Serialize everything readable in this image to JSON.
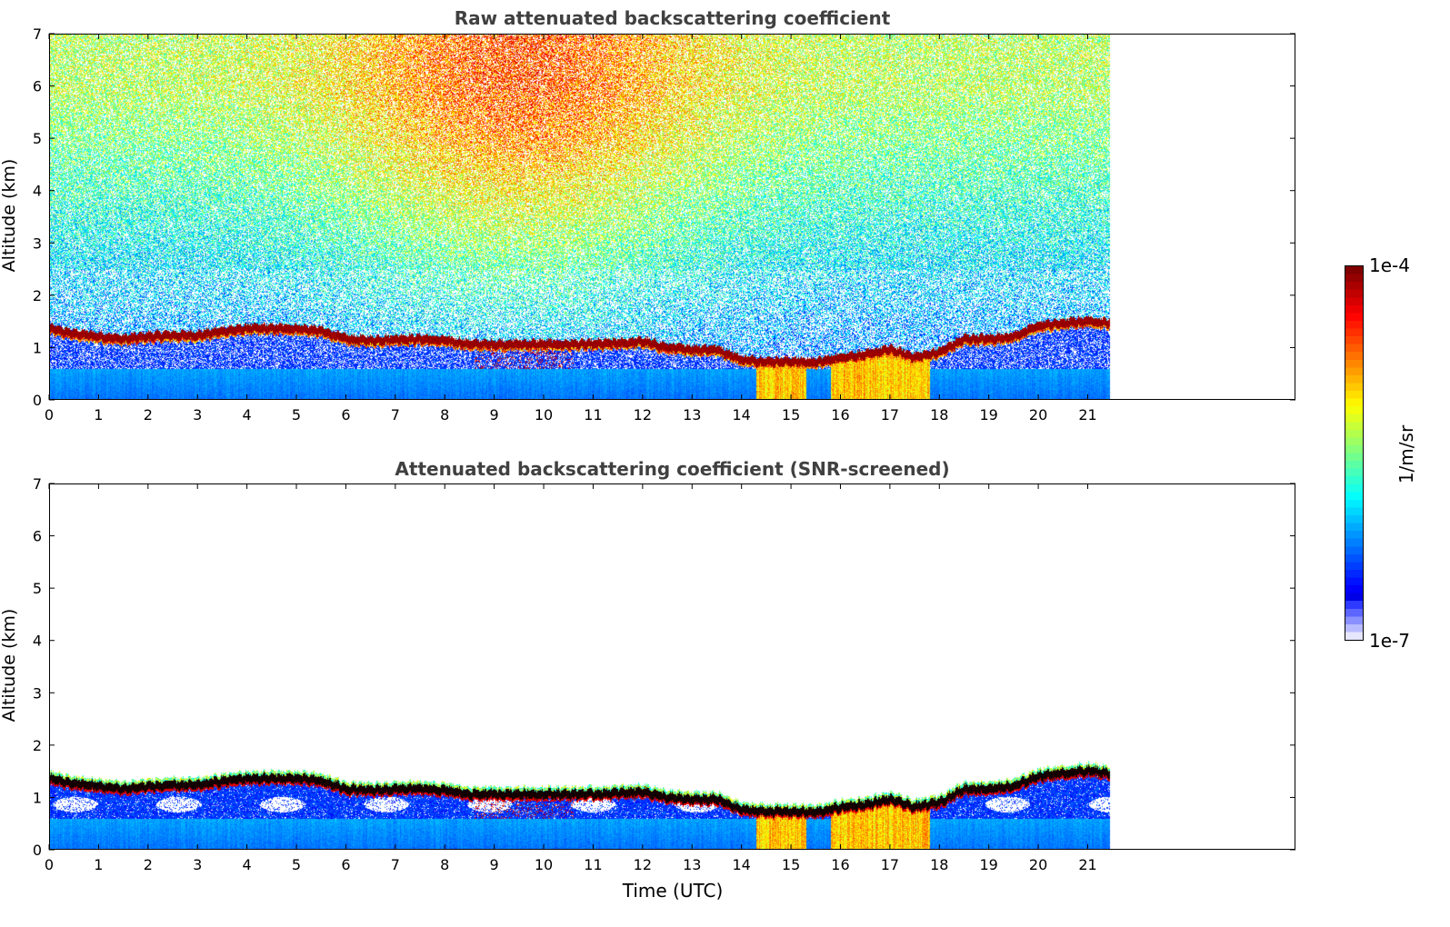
{
  "chart_data": [
    {
      "type": "heatmap",
      "title": "Raw attenuated backscattering coefficient",
      "xlabel": "",
      "ylabel": "Altitude (km)",
      "xlim": [
        0,
        25.2
      ],
      "ylim": [
        0,
        7
      ],
      "xticks": [
        "0",
        "1",
        "2",
        "3",
        "4",
        "5",
        "6",
        "7",
        "8",
        "9",
        "10",
        "11",
        "12",
        "13",
        "14",
        "15",
        "16",
        "17",
        "18",
        "19",
        "20",
        "21"
      ],
      "yticks": [
        "0",
        "1",
        "2",
        "3",
        "4",
        "5",
        "6",
        "7"
      ],
      "data_end_hour": 21.45,
      "screened": false
    },
    {
      "type": "heatmap",
      "title": "Attenuated backscattering coefficient (SNR-screened)",
      "xlabel": "Time (UTC)",
      "ylabel": "Altitude (km)",
      "xlim": [
        0,
        25.2
      ],
      "ylim": [
        0,
        7
      ],
      "xticks": [
        "0",
        "1",
        "2",
        "3",
        "4",
        "5",
        "6",
        "7",
        "8",
        "9",
        "10",
        "11",
        "12",
        "13",
        "14",
        "15",
        "16",
        "17",
        "18",
        "19",
        "20",
        "21"
      ],
      "yticks": [
        "0",
        "1",
        "2",
        "3",
        "4",
        "5",
        "6",
        "7"
      ],
      "data_end_hour": 21.45,
      "screened": true
    }
  ],
  "cloud_layer_km": {
    "hours": [
      0,
      0.5,
      1,
      1.5,
      2,
      2.5,
      3,
      3.5,
      4,
      4.5,
      5,
      5.5,
      6,
      6.5,
      7,
      7.5,
      8,
      8.5,
      9,
      9.5,
      10,
      10.5,
      11,
      11.5,
      12,
      12.5,
      13,
      13.5,
      14,
      14.5,
      15,
      15.5,
      16,
      16.5,
      17,
      17.5,
      18,
      18.5,
      19,
      19.5,
      20,
      20.5,
      21,
      21.45
    ],
    "height": [
      1.35,
      1.25,
      1.2,
      1.15,
      1.2,
      1.22,
      1.22,
      1.3,
      1.35,
      1.35,
      1.35,
      1.3,
      1.15,
      1.12,
      1.15,
      1.15,
      1.12,
      1.05,
      1.05,
      1.05,
      1.05,
      1.05,
      1.05,
      1.07,
      1.1,
      0.98,
      0.95,
      0.95,
      0.75,
      0.72,
      0.72,
      0.7,
      0.8,
      0.85,
      0.95,
      0.8,
      0.9,
      1.15,
      1.15,
      1.2,
      1.4,
      1.45,
      1.5,
      1.45
    ]
  },
  "colorbar": {
    "max_label": "1e-4",
    "min_label": "1e-7",
    "unit": "1/m/sr",
    "scale": "log",
    "range": [
      1e-07,
      0.0001
    ]
  }
}
